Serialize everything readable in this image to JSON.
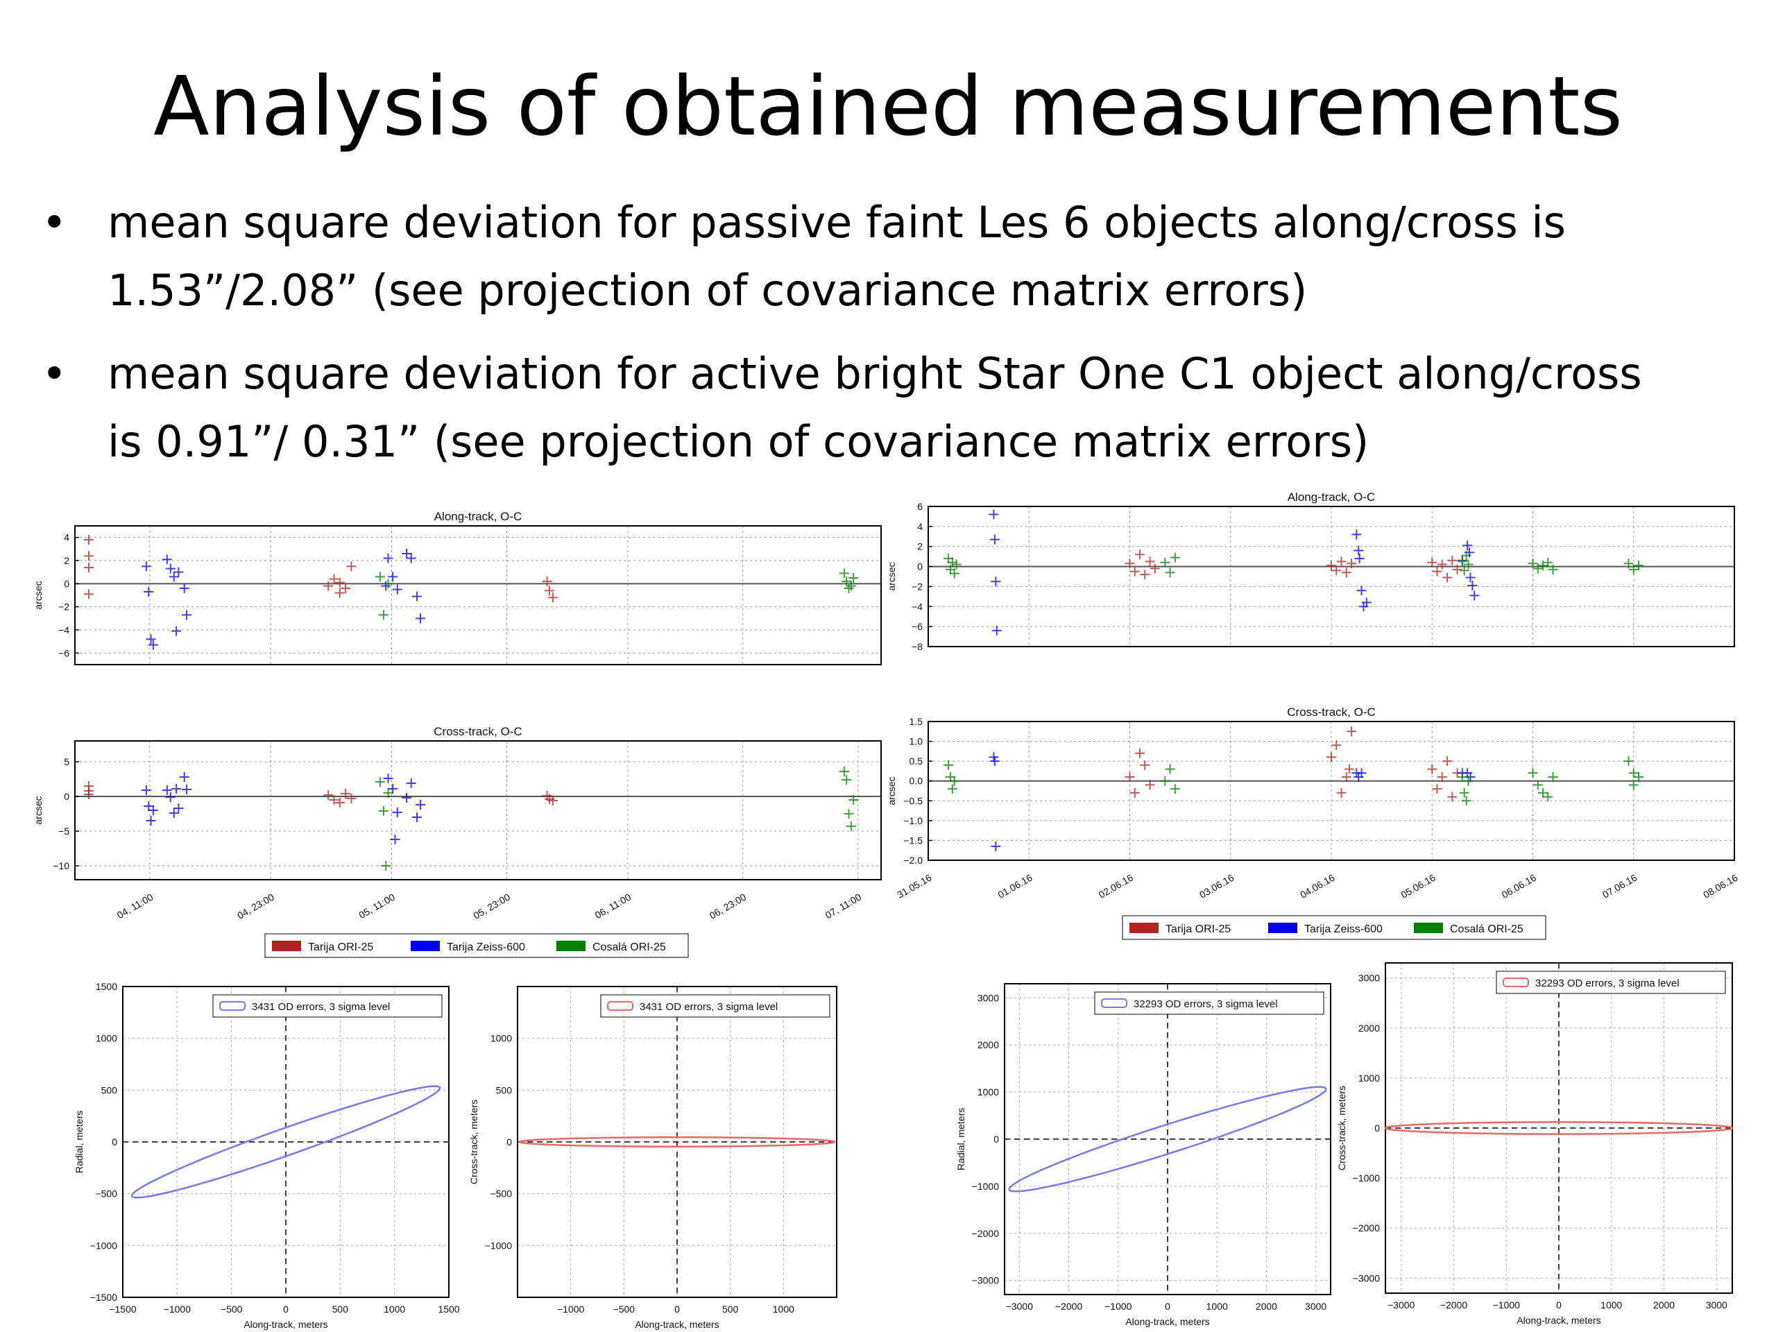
{
  "slide": {
    "title": "Analysis of obtained measurements",
    "bullets": [
      {
        "line1": "mean square deviation for passive faint Les 6 objects along/cross is",
        "line2": "1.53”/2.08” (see projection of covariance matrix errors)"
      },
      {
        "line1": "mean square deviation for active bright Star One C1 object along/cross",
        "line2": "is 0.91”/ 0.31” (see projection of covariance matrix errors)"
      }
    ],
    "bullet_glyph": "•"
  },
  "colors": {
    "tarija_ori": "#b22222",
    "tarija_zeiss": "#0000ee",
    "cosala": "#008000",
    "ellipse_blue": "#7777ee",
    "ellipse_red": "#ee6666"
  },
  "chart_data": [
    {
      "id": "les6-along",
      "type": "scatter",
      "title": "Along-track, O-C",
      "ylabel": "arcsec",
      "ylim": [
        -7,
        5
      ],
      "yticks": [
        4,
        2,
        0,
        -2,
        -4,
        -6
      ],
      "xlim": [
        0,
        7
      ],
      "xticks": [],
      "series": [
        {
          "name": "Tarija ORI-25",
          "color": "#b22222",
          "points": [
            [
              0.12,
              3.8
            ],
            [
              0.12,
              2.4
            ],
            [
              0.12,
              1.4
            ],
            [
              0.12,
              -0.9
            ],
            [
              2.2,
              -0.2
            ],
            [
              2.25,
              0.4
            ],
            [
              2.3,
              -0.8
            ],
            [
              2.35,
              -0.4
            ],
            [
              2.4,
              1.5
            ],
            [
              2.3,
              0.1
            ],
            [
              4.1,
              0.2
            ],
            [
              4.12,
              -0.6
            ],
            [
              4.15,
              -1.2
            ]
          ]
        },
        {
          "name": "Tarija Zeiss-600",
          "color": "#0000ee",
          "points": [
            [
              0.62,
              1.5
            ],
            [
              0.64,
              -0.7
            ],
            [
              0.66,
              -4.8
            ],
            [
              0.68,
              -5.3
            ],
            [
              0.8,
              2.1
            ],
            [
              0.83,
              1.3
            ],
            [
              0.86,
              0.6
            ],
            [
              0.88,
              -4.1
            ],
            [
              0.9,
              1.0
            ],
            [
              0.95,
              -0.4
            ],
            [
              0.97,
              -2.7
            ],
            [
              2.72,
              2.2
            ],
            [
              2.76,
              0.6
            ],
            [
              2.8,
              -0.5
            ],
            [
              2.88,
              2.6
            ],
            [
              2.92,
              2.2
            ],
            [
              2.97,
              -1.1
            ],
            [
              3.0,
              -3.0
            ],
            [
              2.7,
              -0.2
            ]
          ]
        },
        {
          "name": "Cosalá ORI-25",
          "color": "#008000",
          "points": [
            [
              2.65,
              0.6
            ],
            [
              2.68,
              -2.7
            ],
            [
              2.72,
              0.0
            ],
            [
              6.68,
              0.9
            ],
            [
              6.7,
              0.2
            ],
            [
              6.72,
              -0.4
            ],
            [
              6.74,
              -0.2
            ],
            [
              6.76,
              0.5
            ]
          ]
        }
      ]
    },
    {
      "id": "les6-cross",
      "type": "scatter",
      "title": "Cross-track, O-C",
      "ylabel": "arcsec",
      "ylim": [
        -12,
        8
      ],
      "yticks": [
        5,
        0,
        -5,
        -10
      ],
      "xlim": [
        0,
        7
      ],
      "xtick_labels": [
        "04, 11:00",
        "04, 23:00",
        "05, 11:00",
        "05, 23:00",
        "06, 11:00",
        "06, 23:00",
        "07, 11:00"
      ],
      "xtick_pos": [
        0.65,
        1.7,
        2.75,
        3.75,
        4.8,
        5.8,
        6.8
      ],
      "series": [
        {
          "name": "Tarija ORI-25",
          "color": "#b22222",
          "points": [
            [
              0.12,
              1.5
            ],
            [
              0.12,
              0.3
            ],
            [
              0.12,
              0.8
            ],
            [
              2.2,
              0.2
            ],
            [
              2.25,
              -0.5
            ],
            [
              2.3,
              -0.9
            ],
            [
              2.35,
              0.4
            ],
            [
              2.4,
              -0.3
            ],
            [
              4.1,
              0.1
            ],
            [
              4.12,
              -0.4
            ],
            [
              4.15,
              -0.6
            ]
          ]
        },
        {
          "name": "Tarija Zeiss-600",
          "color": "#0000ee",
          "points": [
            [
              0.62,
              0.9
            ],
            [
              0.64,
              -1.4
            ],
            [
              0.66,
              -3.5
            ],
            [
              0.68,
              -2.0
            ],
            [
              0.8,
              0.9
            ],
            [
              0.83,
              -0.1
            ],
            [
              0.86,
              -2.4
            ],
            [
              0.88,
              1.1
            ],
            [
              0.9,
              -1.7
            ],
            [
              0.95,
              2.8
            ],
            [
              0.97,
              1.0
            ],
            [
              2.72,
              2.6
            ],
            [
              2.76,
              1.1
            ],
            [
              2.8,
              -2.3
            ],
            [
              2.88,
              -0.2
            ],
            [
              2.92,
              1.9
            ],
            [
              2.97,
              -3.0
            ],
            [
              3.0,
              -1.2
            ],
            [
              2.78,
              -6.2
            ]
          ]
        },
        {
          "name": "Cosalá ORI-25",
          "color": "#008000",
          "points": [
            [
              2.65,
              2.1
            ],
            [
              2.68,
              -2.1
            ],
            [
              2.7,
              -10.0
            ],
            [
              2.72,
              0.5
            ],
            [
              6.68,
              3.6
            ],
            [
              6.7,
              2.4
            ],
            [
              6.72,
              -2.5
            ],
            [
              6.74,
              -4.3
            ],
            [
              6.76,
              -0.5
            ]
          ]
        }
      ]
    },
    {
      "id": "starone-along",
      "type": "scatter",
      "title": "Along-track, O-C",
      "ylabel": "arcsec",
      "ylim": [
        -8,
        6
      ],
      "yticks": [
        6,
        4,
        2,
        0,
        -2,
        -4,
        -6,
        -8
      ],
      "xlim": [
        0,
        8
      ],
      "xticks": [],
      "series": [
        {
          "name": "Tarija ORI-25",
          "color": "#b22222",
          "points": [
            [
              2.0,
              0.3
            ],
            [
              2.05,
              -0.5
            ],
            [
              2.1,
              1.2
            ],
            [
              2.15,
              -0.8
            ],
            [
              2.2,
              0.5
            ],
            [
              2.25,
              -0.2
            ],
            [
              4.0,
              0.1
            ],
            [
              4.05,
              -0.4
            ],
            [
              4.1,
              0.5
            ],
            [
              4.15,
              -0.6
            ],
            [
              4.2,
              0.3
            ],
            [
              5.0,
              0.4
            ],
            [
              5.05,
              -0.5
            ],
            [
              5.1,
              0.2
            ],
            [
              5.15,
              -1.1
            ],
            [
              5.2,
              0.6
            ],
            [
              5.25,
              -0.3
            ]
          ]
        },
        {
          "name": "Tarija Zeiss-600",
          "color": "#0000ee",
          "points": [
            [
              0.65,
              5.2
            ],
            [
              0.66,
              2.7
            ],
            [
              0.67,
              -1.5
            ],
            [
              0.68,
              -6.4
            ],
            [
              4.25,
              3.2
            ],
            [
              4.27,
              1.6
            ],
            [
              4.3,
              -2.4
            ],
            [
              4.32,
              -4.0
            ],
            [
              4.35,
              -3.6
            ],
            [
              4.28,
              0.8
            ],
            [
              5.35,
              2.1
            ],
            [
              5.37,
              1.4
            ],
            [
              5.38,
              -1.1
            ],
            [
              5.4,
              -1.9
            ],
            [
              5.42,
              -2.9
            ],
            [
              5.3,
              0.6
            ]
          ]
        },
        {
          "name": "Cosalá ORI-25",
          "color": "#008000",
          "points": [
            [
              0.2,
              0.8
            ],
            [
              0.22,
              -0.3
            ],
            [
              0.24,
              0.4
            ],
            [
              0.26,
              -0.7
            ],
            [
              0.28,
              0.2
            ],
            [
              2.35,
              0.4
            ],
            [
              2.4,
              -0.6
            ],
            [
              2.45,
              0.9
            ],
            [
              5.3,
              0.5
            ],
            [
              5.32,
              -0.4
            ],
            [
              5.34,
              1.1
            ],
            [
              5.36,
              0.2
            ],
            [
              6.0,
              0.3
            ],
            [
              6.05,
              -0.2
            ],
            [
              6.1,
              0.1
            ],
            [
              6.15,
              0.4
            ],
            [
              6.2,
              -0.3
            ],
            [
              6.95,
              0.3
            ],
            [
              7.0,
              -0.3
            ],
            [
              7.05,
              0.1
            ]
          ]
        }
      ]
    },
    {
      "id": "starone-cross",
      "type": "scatter",
      "title": "Cross-track, O-C",
      "ylabel": "arcsec",
      "ylim": [
        -2.0,
        1.5
      ],
      "yticks": [
        1.5,
        1.0,
        0.5,
        0.0,
        -0.5,
        -1.0,
        -1.5,
        -2.0
      ],
      "ytick_labels": [
        "1.5",
        "1.0",
        "0.5",
        "0.0",
        "−0.5",
        "−1.0",
        "−1.5",
        "−2.0"
      ],
      "xlim": [
        0,
        8
      ],
      "xtick_labels": [
        "31.05.16",
        "01.06.16",
        "02.06.16",
        "03.06.16",
        "04.06.16",
        "05.06.16",
        "06.06.16",
        "07.06.16",
        "08.06.16"
      ],
      "xtick_pos": [
        0,
        1,
        2,
        3,
        4,
        5,
        6,
        7,
        8
      ],
      "series": [
        {
          "name": "Tarija ORI-25",
          "color": "#b22222",
          "points": [
            [
              2.0,
              0.1
            ],
            [
              2.05,
              -0.3
            ],
            [
              2.1,
              0.7
            ],
            [
              2.15,
              0.4
            ],
            [
              2.2,
              -0.1
            ],
            [
              4.0,
              0.6
            ],
            [
              4.05,
              0.9
            ],
            [
              4.1,
              -0.3
            ],
            [
              4.15,
              0.1
            ],
            [
              4.2,
              1.25
            ],
            [
              4.18,
              0.3
            ],
            [
              5.0,
              0.3
            ],
            [
              5.05,
              -0.2
            ],
            [
              5.1,
              0.1
            ],
            [
              5.15,
              0.5
            ],
            [
              5.2,
              -0.4
            ],
            [
              5.25,
              0.2
            ]
          ]
        },
        {
          "name": "Tarija Zeiss-600",
          "color": "#0000ee",
          "points": [
            [
              0.65,
              0.6
            ],
            [
              0.66,
              0.5
            ],
            [
              0.67,
              -1.65
            ],
            [
              4.25,
              0.2
            ],
            [
              4.27,
              0.1
            ],
            [
              4.3,
              0.2
            ],
            [
              5.35,
              0.2
            ],
            [
              5.38,
              0.1
            ],
            [
              5.3,
              0.2
            ]
          ]
        },
        {
          "name": "Cosalá ORI-25",
          "color": "#008000",
          "points": [
            [
              0.2,
              0.4
            ],
            [
              0.22,
              0.1
            ],
            [
              0.24,
              -0.2
            ],
            [
              0.26,
              0.0
            ],
            [
              2.35,
              0.0
            ],
            [
              2.4,
              0.3
            ],
            [
              2.45,
              -0.2
            ],
            [
              5.3,
              0.1
            ],
            [
              5.32,
              -0.3
            ],
            [
              5.34,
              -0.5
            ],
            [
              5.36,
              0.0
            ],
            [
              6.0,
              0.2
            ],
            [
              6.05,
              -0.1
            ],
            [
              6.1,
              -0.3
            ],
            [
              6.15,
              -0.4
            ],
            [
              6.2,
              0.1
            ],
            [
              6.95,
              0.5
            ],
            [
              7.0,
              0.2
            ],
            [
              7.05,
              0.1
            ],
            [
              7.0,
              -0.1
            ]
          ]
        }
      ]
    },
    {
      "id": "les6-radial",
      "type": "line",
      "legend": "3431 OD errors, 3 sigma level",
      "legend_loc": "top-right",
      "color": "#7777ee",
      "xlabel": "Along-track, meters",
      "ylabel": "Radial, meters",
      "xlim": [
        -1500,
        1500
      ],
      "ylim": [
        -1500,
        1500
      ],
      "xticks": [
        -1500,
        -1000,
        -500,
        0,
        500,
        1000,
        1500
      ],
      "yticks": [
        1500,
        1000,
        500,
        0,
        -500,
        -1000,
        -1500
      ],
      "ellipse": {
        "cx": 0,
        "cy": 0,
        "a": 1510,
        "b": 130,
        "angle_deg": 20.3
      }
    },
    {
      "id": "les6-cross-ellipse",
      "type": "line",
      "legend": "3431 OD errors, 3 sigma level",
      "legend_loc": "top-right",
      "color": "#ee6666",
      "xlabel": "Along-track, meters",
      "ylabel": "Cross-track, meters",
      "xlim": [
        -1500,
        1500
      ],
      "ylim": [
        -1500,
        1500
      ],
      "xticks": [
        -1000,
        -500,
        0,
        500,
        1000
      ],
      "yticks": [
        1000,
        500,
        0,
        -500,
        -1000
      ],
      "ellipse": {
        "cx": 0,
        "cy": 0,
        "a": 1480,
        "b": 45,
        "angle_deg": 0
      }
    },
    {
      "id": "starone-radial",
      "type": "line",
      "legend": "32293 OD errors, 3 sigma level",
      "legend_loc": "top-right",
      "color": "#7777ee",
      "xlabel": "Along-track, meters",
      "ylabel": "Radial, meters",
      "xlim": [
        -3300,
        3300
      ],
      "ylim": [
        -3300,
        3300
      ],
      "xticks": [
        -3000,
        -2000,
        -1000,
        0,
        1000,
        2000,
        3000
      ],
      "yticks": [
        3000,
        2000,
        1000,
        0,
        -1000,
        -2000,
        -3000
      ],
      "ellipse": {
        "cx": 0,
        "cy": 0,
        "a": 3380,
        "b": 300,
        "angle_deg": 18.5
      }
    },
    {
      "id": "starone-cross-ellipse",
      "type": "line",
      "legend": "32293 OD errors, 3 sigma level",
      "legend_loc": "top-right",
      "color": "#ee6666",
      "xlabel": "Along-track, meters",
      "ylabel": "Cross-track, meters",
      "xlim": [
        -3300,
        3300
      ],
      "ylim": [
        -3300,
        3300
      ],
      "xticks": [
        -3000,
        -2000,
        -1000,
        0,
        1000,
        2000,
        3000
      ],
      "yticks": [
        3000,
        2000,
        1000,
        0,
        -1000,
        -2000,
        -3000
      ],
      "ellipse": {
        "cx": 0,
        "cy": 0,
        "a": 3300,
        "b": 120,
        "angle_deg": 0
      }
    }
  ],
  "legends": [
    {
      "id": "les6-legend",
      "entries": [
        "Tarija ORI-25",
        "Tarija Zeiss-600",
        "Cosalá ORI-25"
      ]
    },
    {
      "id": "starone-legend",
      "entries": [
        "Tarija ORI-25",
        "Tarija Zeiss-600",
        "Cosalá ORI-25"
      ]
    }
  ]
}
